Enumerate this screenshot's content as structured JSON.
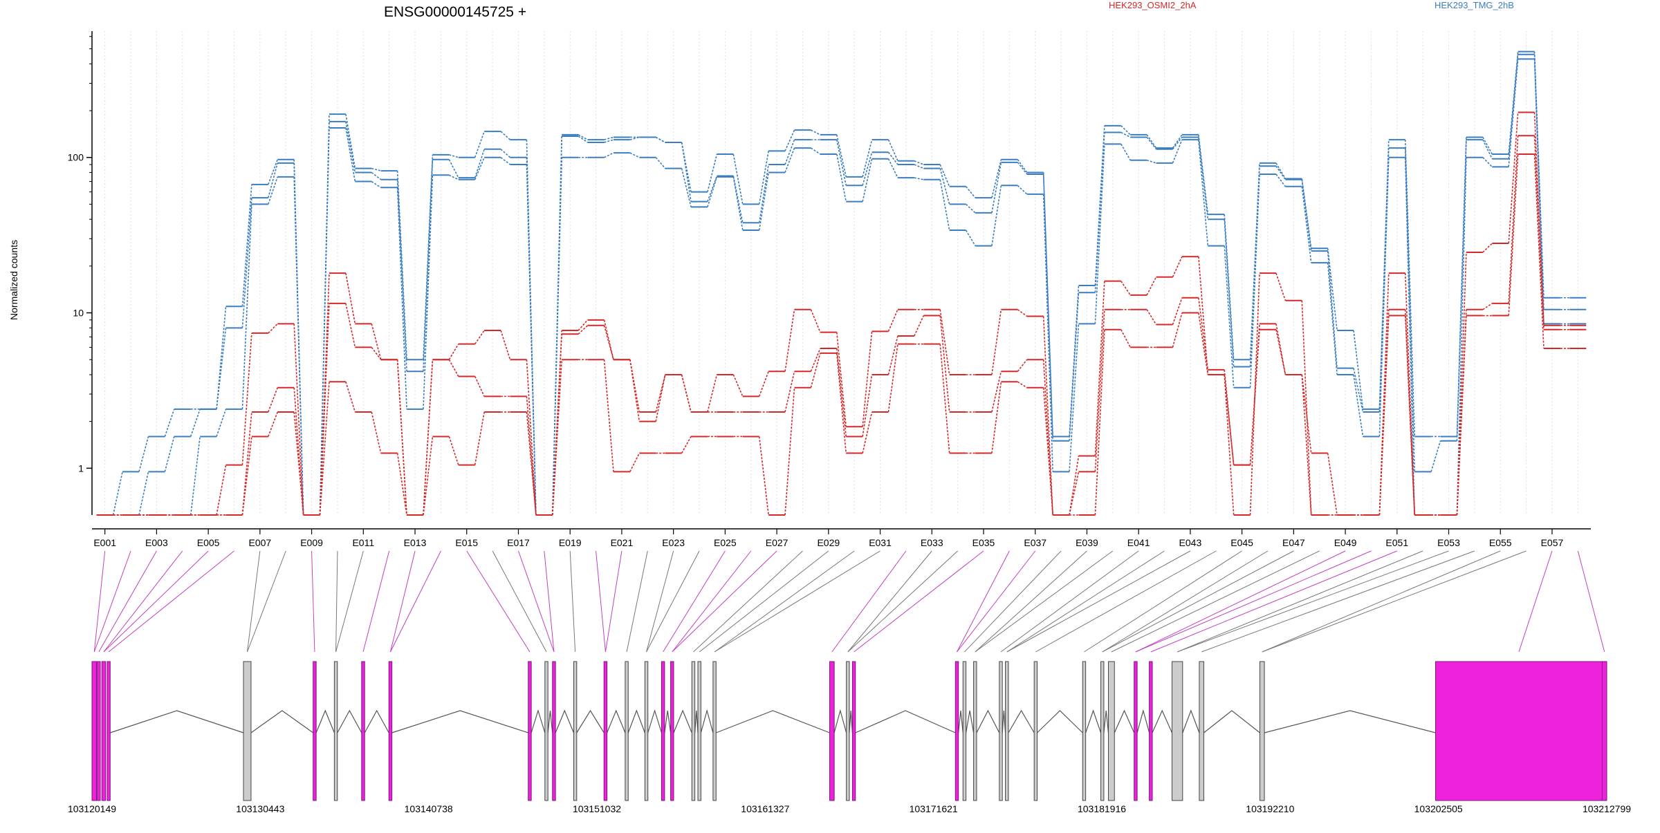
{
  "chart_data": {
    "type": "line",
    "title": "ENSG00000145725 +",
    "ylabel": "Normalized counts",
    "yscale": "log",
    "ylim": [
      0.5,
      650
    ],
    "yticks": [
      1,
      10,
      100
    ],
    "ytick_labels": [
      "1",
      "10",
      "100"
    ],
    "exon_labels": [
      "E001",
      "E003",
      "E005",
      "E007",
      "E009",
      "E011",
      "E013",
      "E015",
      "E017",
      "E019",
      "E021",
      "E023",
      "E025",
      "E027",
      "E029",
      "E031",
      "E033",
      "E035",
      "E037",
      "E039",
      "E041",
      "E043",
      "E045",
      "E047",
      "E049",
      "E051",
      "E053",
      "E055",
      "E057"
    ],
    "genomic_ticks": [
      "103120149",
      "103130443",
      "103140738",
      "103151032",
      "103161327",
      "103171621",
      "103181916",
      "103192210",
      "103202505",
      "103212799"
    ],
    "genomic_range": [
      103120149,
      103212799
    ],
    "legend": [
      {
        "name": "HEK293_OSMI2_2hA",
        "color": "#d62728"
      },
      {
        "name": "HEK293_TMG_2hB",
        "color": "#3a7dc0"
      }
    ],
    "grid": "vertical dotted (per exon)",
    "series": [
      {
        "group": "HEK293_TMG_2hB",
        "color": "#3a7dc0",
        "values": [
          0.5,
          0.95,
          1.6,
          2.4,
          2.4,
          11,
          67,
          97,
          0.5,
          190,
          85,
          82,
          5,
          104,
          100,
          147,
          130,
          0.5,
          140,
          130,
          135,
          135,
          125,
          60,
          105,
          50,
          110,
          150,
          140,
          75,
          130,
          95,
          90,
          65,
          55,
          97,
          80,
          1.6,
          15,
          160,
          140,
          115,
          140,
          43,
          5,
          92,
          73,
          26,
          7.7,
          2.4,
          130,
          1.6,
          1.6,
          135,
          105,
          480,
          12.5,
          12.5
        ]
      },
      {
        "group": "HEK293_TMG_2hB",
        "color": "#3a7dc0",
        "values": [
          0.5,
          0.5,
          0.95,
          1.6,
          2.4,
          8,
          55,
          92,
          0.5,
          170,
          80,
          72,
          4.2,
          97,
          74,
          113,
          100,
          0.5,
          137,
          125,
          130,
          135,
          125,
          52,
          76,
          38,
          90,
          130,
          130,
          66,
          108,
          90,
          85,
          50,
          44,
          93,
          78,
          1.5,
          13.5,
          145,
          135,
          113,
          135,
          40,
          4.5,
          88,
          72,
          25,
          4.4,
          2.3,
          115,
          0.95,
          1.5,
          130,
          98,
          460,
          10.5,
          10.5
        ]
      },
      {
        "group": "HEK293_TMG_2hB",
        "color": "#3a7dc0",
        "values": [
          0.5,
          0.5,
          0.5,
          0.5,
          1.6,
          2.4,
          50,
          75,
          0.5,
          155,
          70,
          64,
          2.4,
          77,
          72,
          100,
          90,
          0.5,
          100,
          100,
          107,
          100,
          85,
          48,
          75,
          34,
          80,
          115,
          105,
          52,
          98,
          74,
          72,
          34,
          27,
          66,
          58,
          0.95,
          8.5,
          122,
          96,
          92,
          130,
          27,
          3.3,
          78,
          65,
          21,
          4,
          1.6,
          100,
          0.5,
          0.5,
          100,
          87,
          430,
          8.5,
          8.5
        ]
      },
      {
        "group": "HEK293_OSMI2_2hA",
        "color": "#d62728",
        "values": [
          0.5,
          0.5,
          0.5,
          0.5,
          0.5,
          1.05,
          7.4,
          8.5,
          0.5,
          18,
          8.5,
          5,
          0.5,
          5,
          6.3,
          7.7,
          5,
          0.5,
          7.7,
          9,
          5,
          2.3,
          4,
          2.3,
          4,
          2.9,
          4.2,
          10.5,
          7.5,
          1.85,
          7.6,
          10.5,
          10.5,
          4,
          4,
          10.5,
          9.5,
          0.5,
          1.2,
          16,
          13,
          17,
          23,
          4,
          0.5,
          18,
          12,
          0.5,
          0.5,
          0.5,
          18,
          0.5,
          0.5,
          24.5,
          28,
          195,
          8.3,
          8.3
        ]
      },
      {
        "group": "HEK293_OSMI2_2hA",
        "color": "#d62728",
        "values": [
          0.5,
          0.5,
          0.5,
          0.5,
          0.5,
          0.5,
          2.3,
          3.3,
          0.5,
          11.5,
          6,
          5,
          0.5,
          5,
          3.9,
          2.9,
          2.9,
          0.5,
          7.3,
          8.3,
          5,
          2,
          4,
          2.3,
          2.3,
          2.3,
          2.3,
          4.2,
          5.9,
          1.6,
          4,
          7.1,
          9.6,
          2.3,
          2.3,
          4.2,
          5,
          0.5,
          0.95,
          10.5,
          10.5,
          8.4,
          12.5,
          4.3,
          1.05,
          8.5,
          4,
          1.25,
          0.5,
          0.5,
          10.5,
          0.5,
          0.5,
          10.5,
          11.5,
          138,
          7.8,
          7.8
        ]
      },
      {
        "group": "HEK293_OSMI2_2hA",
        "color": "#d62728",
        "values": [
          0.5,
          0.5,
          0.5,
          0.5,
          0.5,
          0.5,
          1.6,
          2.3,
          0.5,
          3.6,
          2.3,
          1.25,
          0.5,
          1.6,
          1.05,
          2.3,
          2.3,
          0.5,
          5,
          5,
          0.95,
          1.25,
          1.25,
          1.6,
          1.6,
          1.6,
          0.5,
          3.3,
          5.5,
          1.25,
          2.3,
          6.3,
          6.3,
          1.25,
          1.25,
          3.6,
          3.3,
          0.5,
          0.5,
          7.8,
          6,
          6,
          10,
          4,
          1.05,
          7.8,
          4,
          0.5,
          0.5,
          0.5,
          9.6,
          0.5,
          0.5,
          9.6,
          9.6,
          105,
          5.9,
          5.9
        ]
      }
    ]
  }
}
